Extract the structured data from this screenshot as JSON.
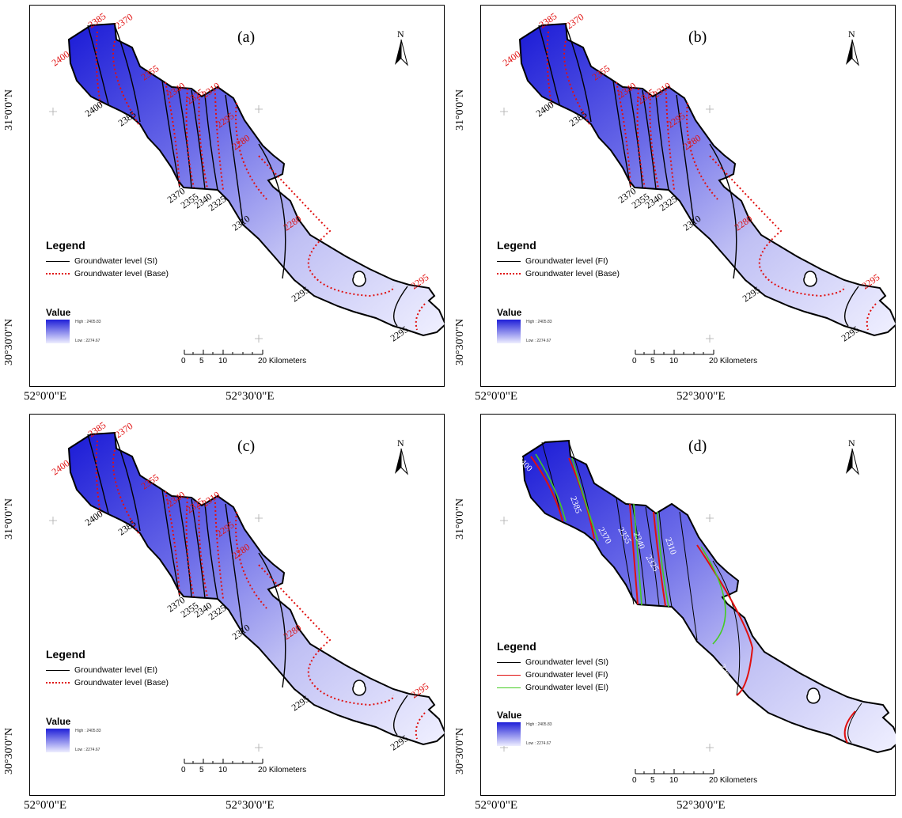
{
  "panels": [
    {
      "label": "(a)",
      "legend_title": "Legend",
      "legend_items": [
        {
          "text": "Groundwater level (SI)",
          "color": "#000000",
          "style": "solid"
        },
        {
          "text": "Groundwater level (Base)",
          "color": "#e01010",
          "style": "dotted"
        }
      ],
      "contour_labels_black": [
        "2400",
        "2385",
        "2370",
        "2355",
        "2340",
        "2325",
        "2310",
        "2295",
        "2295"
      ],
      "contour_labels_red": [
        "2385",
        "2370",
        "2400",
        "2355",
        "2340",
        "2325",
        "2310",
        "2295",
        "2280",
        "2280",
        "2295"
      ]
    },
    {
      "label": "(b)",
      "legend_title": "Legend",
      "legend_items": [
        {
          "text": "Groundwater level (FI)",
          "color": "#000000",
          "style": "solid"
        },
        {
          "text": "Groundwater level (Base)",
          "color": "#e01010",
          "style": "dotted"
        }
      ],
      "contour_labels_black": [
        "2400",
        "2385",
        "2370",
        "2355",
        "2340",
        "2325",
        "2310",
        "2295",
        "2295"
      ],
      "contour_labels_red": [
        "2385",
        "2370",
        "2400",
        "2355",
        "2340",
        "2325",
        "2310",
        "2295",
        "2280",
        "2280",
        "2295"
      ]
    },
    {
      "label": "(c)",
      "legend_title": "Legend",
      "legend_items": [
        {
          "text": "Groundwater level (EI)",
          "color": "#000000",
          "style": "solid"
        },
        {
          "text": "Groundwater level (Base)",
          "color": "#e01010",
          "style": "dotted"
        }
      ],
      "contour_labels_black": [
        "2400",
        "2385",
        "2370",
        "2355",
        "2340",
        "2325",
        "2310",
        "2295",
        "2295"
      ],
      "contour_labels_red": [
        "2385",
        "2370",
        "2400",
        "2355",
        "2340",
        "2325",
        "2310",
        "2295",
        "2280",
        "2280",
        "2295"
      ]
    },
    {
      "label": "(d)",
      "legend_title": "Legend",
      "legend_items": [
        {
          "text": "Groundwater level (SI)",
          "color": "#000000",
          "style": "solid"
        },
        {
          "text": "Groundwater level (FI)",
          "color": "#e01010",
          "style": "solid"
        },
        {
          "text": "Groundwater level (EI)",
          "color": "#44cc22",
          "style": "solid"
        }
      ],
      "contour_labels_white": [
        "2400",
        "2385",
        "2370",
        "2355",
        "2340",
        "2325",
        "2310",
        "2295",
        "2295"
      ]
    }
  ],
  "common": {
    "north": "N",
    "lat_top": "31°0'0\"N",
    "lat_bottom": "30°30'0\"N",
    "lon_left": "52°0'0\"E",
    "lon_right": "52°30'0\"E",
    "value_title": "Value",
    "value_high": "High : 2405.83",
    "value_low": "Low : 2274.67",
    "scale_ticks": [
      "0",
      "5",
      "10",
      "20 Kilometers"
    ]
  },
  "colors": {
    "high": "#1a1ad6",
    "low": "#f0f0ff",
    "base_contour": "#e01010",
    "ei_contour": "#44cc22"
  }
}
